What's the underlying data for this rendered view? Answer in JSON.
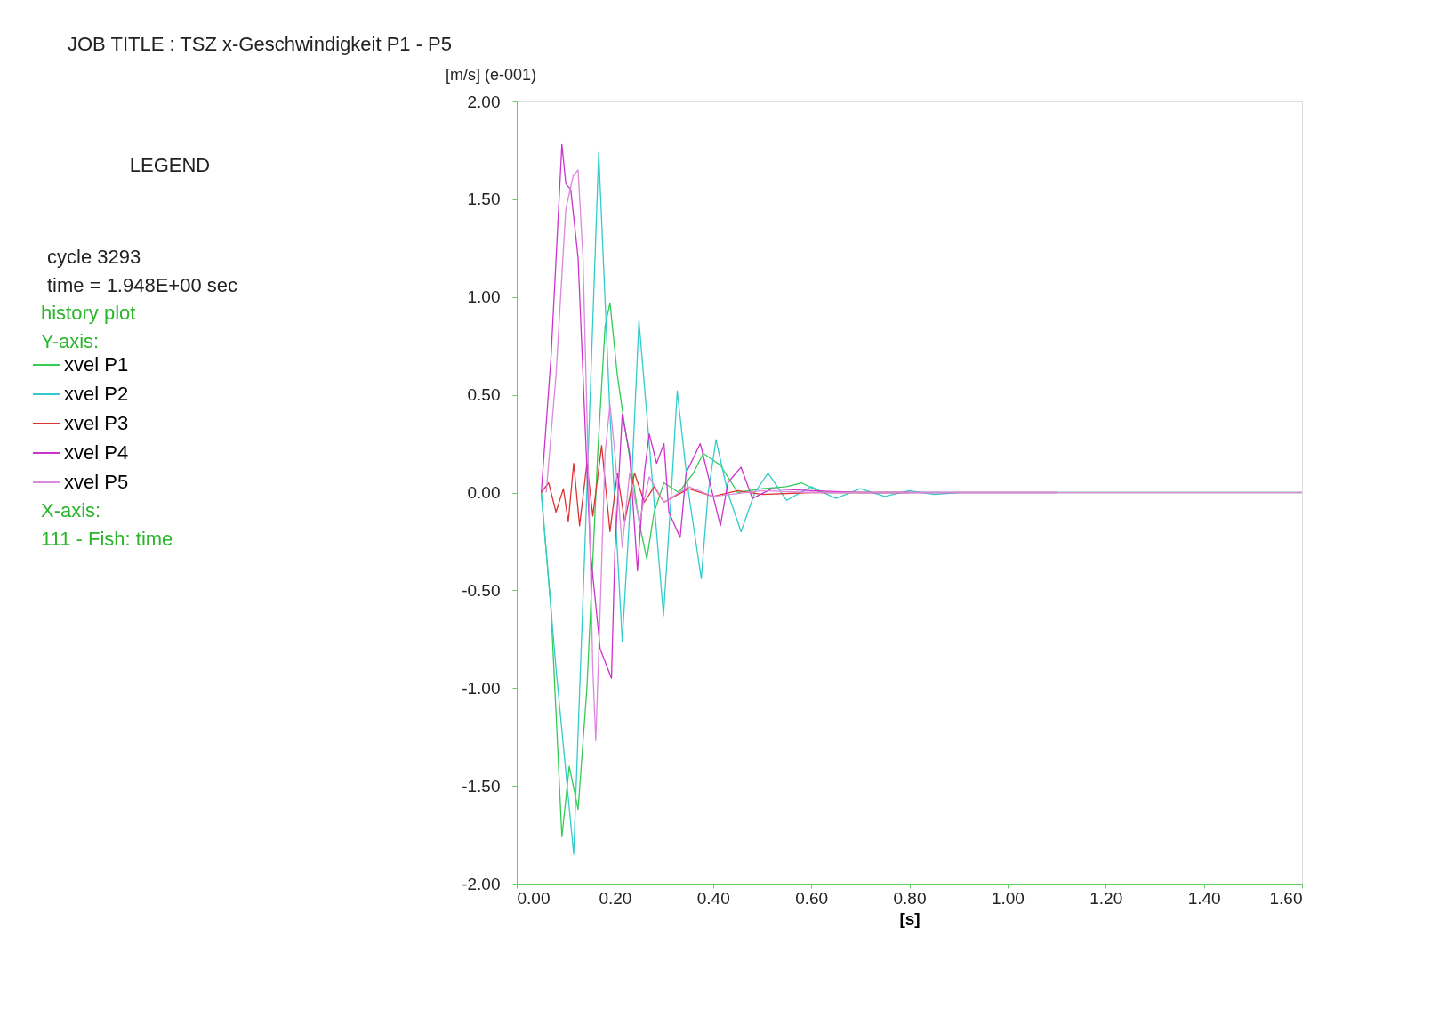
{
  "chart_data": {
    "type": "line",
    "title": "JOB TITLE :  TSZ x-Geschwindigkeit P1 - P5",
    "xlabel": "[s]",
    "ylabel": "[m/s] (e-001)",
    "annotations": [
      "LEGEND",
      "cycle      3293",
      "time  =  1.948E+00 sec",
      "history plot",
      "Y-axis:",
      "X-axis:",
      "111 - Fish:       time"
    ],
    "legend": "left",
    "grid": false,
    "marker": "none",
    "line_style": "solid",
    "xlim": [
      0,
      1.6
    ],
    "xticks": [
      {
        "value": 0,
        "label": "0.00"
      },
      {
        "value": 0.2,
        "label": "0.20"
      },
      {
        "value": 0.4,
        "label": "0.40"
      },
      {
        "value": 0.6,
        "label": "0.60"
      },
      {
        "value": 0.8,
        "label": "0.80"
      },
      {
        "value": 1,
        "label": "1.00"
      },
      {
        "value": 1.2,
        "label": "1.20"
      },
      {
        "value": 1.4,
        "label": "1.40"
      },
      {
        "value": 1.6,
        "label": "1.60"
      }
    ],
    "ylim": [
      -2,
      2
    ],
    "yticks": [
      {
        "value": -2,
        "label": "-2.00"
      },
      {
        "value": -1.5,
        "label": "-1.50"
      },
      {
        "value": -1,
        "label": "-1.00"
      },
      {
        "value": -0.5,
        "label": "-0.50"
      },
      {
        "value": 0,
        "label": "0.00"
      },
      {
        "value": 0.5,
        "label": "0.50"
      },
      {
        "value": 1,
        "label": "1.00"
      },
      {
        "value": 1.5,
        "label": "1.50"
      },
      {
        "value": 2,
        "label": "2.00"
      }
    ],
    "series": [
      {
        "name": "xvel P1",
        "color": "#33cc55",
        "x": [
          0.05,
          0.07,
          0.092,
          0.107,
          0.125,
          0.143,
          0.165,
          0.18,
          0.19,
          0.205,
          0.22,
          0.235,
          0.25,
          0.265,
          0.28,
          0.3,
          0.33,
          0.36,
          0.38,
          0.415,
          0.45,
          0.5,
          0.55,
          0.58,
          0.62,
          0.7,
          1.6
        ],
        "values": [
          0,
          -0.6,
          -1.76,
          -1.4,
          -1.62,
          -1.0,
          0.2,
          0.85,
          0.97,
          0.6,
          0.34,
          0.1,
          -0.16,
          -0.34,
          -0.1,
          0.05,
          0,
          0.1,
          0.2,
          0.14,
          0,
          0.02,
          0.03,
          0.05,
          0,
          0,
          0
        ]
      },
      {
        "name": "xvel P2",
        "color": "#33cccc",
        "x": [
          0.05,
          0.08,
          0.116,
          0.14,
          0.167,
          0.19,
          0.215,
          0.235,
          0.249,
          0.275,
          0.299,
          0.315,
          0.327,
          0.35,
          0.376,
          0.39,
          0.406,
          0.43,
          0.457,
          0.485,
          0.512,
          0.55,
          0.6,
          0.65,
          0.7,
          0.75,
          0.8,
          0.85,
          0.9
        ],
        "values": [
          0,
          -0.9,
          -1.85,
          -0.2,
          1.74,
          0.4,
          -0.76,
          0.1,
          0.88,
          0.1,
          -0.63,
          0.0,
          0.52,
          0.0,
          -0.44,
          0.0,
          0.27,
          0.0,
          -0.2,
          0.0,
          0.1,
          -0.04,
          0.03,
          -0.03,
          0.02,
          -0.02,
          0.01,
          -0.01,
          0
        ]
      },
      {
        "name": "xvel P3",
        "color": "#dd3333",
        "x": [
          0.05,
          0.065,
          0.08,
          0.095,
          0.105,
          0.116,
          0.128,
          0.143,
          0.155,
          0.173,
          0.19,
          0.205,
          0.22,
          0.24,
          0.26,
          0.28,
          0.3,
          0.35,
          0.4,
          0.45,
          0.5,
          0.6,
          0.8
        ],
        "values": [
          0,
          0.05,
          -0.1,
          0.02,
          -0.15,
          0.15,
          -0.17,
          0.15,
          -0.12,
          0.24,
          -0.2,
          0.1,
          -0.15,
          0.1,
          -0.05,
          0.03,
          -0.05,
          0.02,
          -0.02,
          0.01,
          -0.01,
          0,
          0
        ]
      },
      {
        "name": "xvel P4",
        "color": "#cc33cc",
        "x": [
          0.05,
          0.07,
          0.092,
          0.1,
          0.11,
          0.125,
          0.14,
          0.15,
          0.17,
          0.193,
          0.2,
          0.215,
          0.23,
          0.246,
          0.26,
          0.27,
          0.285,
          0.3,
          0.31,
          0.333,
          0.345,
          0.374,
          0.415,
          0.43,
          0.457,
          0.48,
          0.52,
          0.6,
          0.7,
          1.1
        ],
        "values": [
          0,
          0.7,
          1.78,
          1.58,
          1.55,
          1.2,
          0.3,
          -0.3,
          -0.8,
          -0.95,
          -0.3,
          0.4,
          0.2,
          -0.4,
          0.1,
          0.3,
          0.15,
          0.25,
          -0.1,
          -0.23,
          0.1,
          0.25,
          -0.17,
          0.05,
          0.13,
          -0.03,
          0.02,
          0.01,
          0,
          0
        ]
      },
      {
        "name": "xvel P5",
        "color": "#dd88dd",
        "x": [
          0.06,
          0.08,
          0.1,
          0.115,
          0.125,
          0.135,
          0.145,
          0.155,
          0.161,
          0.17,
          0.18,
          0.19,
          0.2,
          0.215,
          0.23,
          0.25,
          0.27,
          0.3,
          0.35,
          0.4,
          0.5,
          0.6,
          1.6
        ],
        "values": [
          0,
          0.6,
          1.45,
          1.62,
          1.65,
          1.2,
          0.2,
          -0.9,
          -1.27,
          -0.6,
          0.2,
          0.45,
          0.2,
          -0.28,
          0.1,
          -0.15,
          0.08,
          -0.05,
          0.03,
          -0.02,
          0.01,
          0,
          0
        ]
      }
    ]
  }
}
